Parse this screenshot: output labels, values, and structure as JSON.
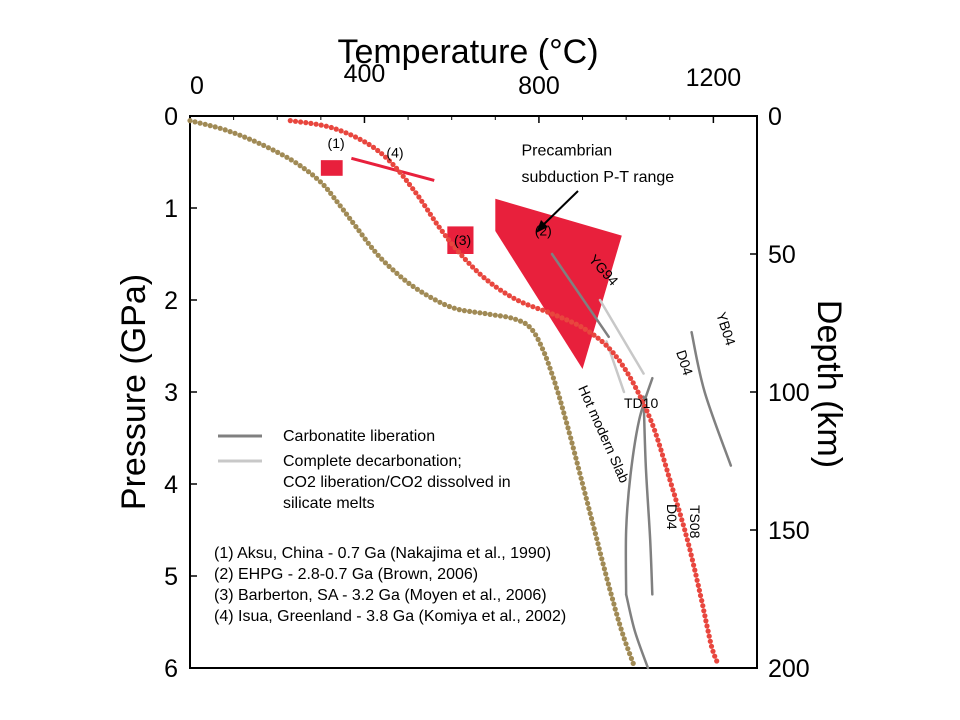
{
  "chart_data": {
    "type": "line",
    "title": "",
    "x_axis": {
      "label": "Temperature (°C)",
      "position": "top",
      "range": [
        0,
        1300
      ],
      "ticks": [
        {
          "value": 0,
          "label": "0"
        },
        {
          "value": 400,
          "label": "400"
        },
        {
          "value": 800,
          "label": "800"
        },
        {
          "value": 1200,
          "label": "1200"
        }
      ]
    },
    "y_axis": {
      "label": "Pressure (GPa)",
      "position": "left",
      "range": [
        0,
        6
      ],
      "inverted": true,
      "ticks": [
        {
          "value": 0,
          "label": "0"
        },
        {
          "value": 1,
          "label": "1"
        },
        {
          "value": 2,
          "label": "2"
        },
        {
          "value": 3,
          "label": "3"
        },
        {
          "value": 4,
          "label": "4"
        },
        {
          "value": 5,
          "label": "5"
        },
        {
          "value": 6,
          "label": "6"
        }
      ]
    },
    "y2_axis": {
      "label": "Depth (km)",
      "position": "right",
      "ticks": [
        {
          "pressure": 0,
          "label": "0"
        },
        {
          "pressure": 1.5,
          "label": "50"
        },
        {
          "pressure": 3,
          "label": "100"
        },
        {
          "pressure": 4.5,
          "label": "150"
        },
        {
          "pressure": 6,
          "label": "200"
        }
      ]
    },
    "grid": false,
    "series": [
      {
        "name": "Hot modern Slab",
        "style": "dotted",
        "color": "#a08a55",
        "points": [
          [
            0,
            0.05
          ],
          [
            80,
            0.15
          ],
          [
            160,
            0.3
          ],
          [
            240,
            0.5
          ],
          [
            300,
            0.72
          ],
          [
            340,
            0.95
          ],
          [
            380,
            1.2
          ],
          [
            420,
            1.45
          ],
          [
            460,
            1.65
          ],
          [
            520,
            1.88
          ],
          [
            600,
            2.08
          ],
          [
            680,
            2.15
          ],
          [
            740,
            2.2
          ],
          [
            780,
            2.3
          ],
          [
            810,
            2.55
          ],
          [
            840,
            2.95
          ],
          [
            870,
            3.45
          ],
          [
            900,
            4.0
          ],
          [
            930,
            4.55
          ],
          [
            960,
            5.1
          ],
          [
            990,
            5.6
          ],
          [
            1020,
            6.0
          ]
        ]
      },
      {
        "name": "",
        "style": "dotted",
        "color": "#e8463e",
        "points": [
          [
            230,
            0.05
          ],
          [
            320,
            0.12
          ],
          [
            400,
            0.28
          ],
          [
            460,
            0.5
          ],
          [
            520,
            0.85
          ],
          [
            570,
            1.2
          ],
          [
            620,
            1.5
          ],
          [
            680,
            1.78
          ],
          [
            750,
            2.0
          ],
          [
            830,
            2.15
          ],
          [
            900,
            2.3
          ],
          [
            960,
            2.52
          ],
          [
            1010,
            2.85
          ],
          [
            1060,
            3.35
          ],
          [
            1100,
            3.95
          ],
          [
            1140,
            4.6
          ],
          [
            1170,
            5.2
          ],
          [
            1195,
            5.75
          ],
          [
            1210,
            5.95
          ]
        ]
      },
      {
        "name": "YG94",
        "category": "Carbonatite liberation",
        "color": "#808080",
        "points": [
          [
            830,
            1.5
          ],
          [
            960,
            2.4
          ]
        ]
      },
      {
        "name": "D04",
        "category": "Carbonatite liberation",
        "color": "#808080",
        "points": [
          [
            1060,
            2.85
          ],
          [
            1030,
            3.3
          ],
          [
            1010,
            3.9
          ],
          [
            1000,
            4.5
          ],
          [
            1000,
            5.2
          ]
        ]
      },
      {
        "name": "D04",
        "category": "Carbonatite liberation",
        "color": "#808080",
        "points": [
          [
            1000,
            5.2
          ],
          [
            1020,
            5.6
          ],
          [
            1050,
            6.0
          ]
        ]
      },
      {
        "name": "TS08",
        "category": "Carbonatite liberation",
        "color": "#808080",
        "points": [
          [
            1040,
            3.05
          ],
          [
            1045,
            3.8
          ],
          [
            1055,
            4.6
          ],
          [
            1060,
            5.2
          ]
        ]
      },
      {
        "name": "YB04",
        "category": "Carbonatite liberation",
        "color": "#808080",
        "points": [
          [
            1150,
            2.35
          ],
          [
            1180,
            3.0
          ],
          [
            1240,
            3.8
          ]
        ]
      },
      {
        "name": "",
        "category": "Complete decarbonation; CO2 liberation/CO2 dissolved in silicate melts",
        "color": "#c8c8c8",
        "points": [
          [
            940,
            2.0
          ],
          [
            1040,
            2.8
          ]
        ]
      },
      {
        "name": "TD10",
        "category": "Complete decarbonation; CO2 liberation/CO2 dissolved in silicate melts",
        "color": "#c8c8c8",
        "points": [
          [
            955,
            2.45
          ],
          [
            995,
            3.0
          ]
        ]
      }
    ],
    "regions": [
      {
        "label": "(1)",
        "shape": "rect",
        "t_range": [
          300,
          350
        ],
        "p_range": [
          0.48,
          0.65
        ]
      },
      {
        "label": "(3)",
        "shape": "rect",
        "t_range": [
          590,
          650
        ],
        "p_range": [
          1.2,
          1.5
        ]
      },
      {
        "label": "(2)",
        "shape": "polygon",
        "points": [
          [
            700,
            0.9
          ],
          [
            990,
            1.3
          ],
          [
            900,
            2.75
          ],
          [
            700,
            1.25
          ]
        ]
      },
      {
        "label": "(4)",
        "shape": "line",
        "points": [
          [
            370,
            0.46
          ],
          [
            560,
            0.7
          ]
        ]
      }
    ],
    "annotations": [
      {
        "text": "(1)",
        "t": 335,
        "p": 0.35
      },
      {
        "text": "(4)",
        "t": 470,
        "p": 0.45
      },
      {
        "text": "(3)",
        "t": 625,
        "p": 1.4
      },
      {
        "text": "(2)",
        "t": 810,
        "p": 1.3
      },
      {
        "text": "Precambrian",
        "t": 760,
        "p": 0.43
      },
      {
        "text": "subduction P-T range",
        "t": 760,
        "p": 0.72
      },
      {
        "text": "Hot modern Slab"
      },
      {
        "text": "YG94"
      },
      {
        "text": "D04"
      },
      {
        "text": "TD10"
      },
      {
        "text": "TS08"
      },
      {
        "text": "YB04"
      }
    ],
    "legend": {
      "placement": "lower-left",
      "entries": [
        {
          "label_lines": [
            "Carbonatite liberation"
          ],
          "color": "#808080"
        },
        {
          "label_lines": [
            "Complete decarbonation;",
            "CO2 liberation/CO2 dissolved in",
            "silicate melts"
          ],
          "color": "#c8c8c8"
        }
      ]
    },
    "references": [
      "(1) Aksu, China - 0.7 Ga (Nakajima et al., 1990)",
      "(2) EHPG - 2.8-0.7 Ga (Brown, 2006)",
      "(3) Barberton, SA - 3.2 Ga (Moyen et al., 2006)",
      "(4) Isua, Greenland - 3.8 Ga (Komiya et al., 2002)"
    ],
    "colors": {
      "hot_slab": "#a08a55",
      "red": "#e8463e",
      "region_fill": "#e8203c",
      "carbonatite": "#808080",
      "decarbonation": "#c8c8c8"
    }
  }
}
